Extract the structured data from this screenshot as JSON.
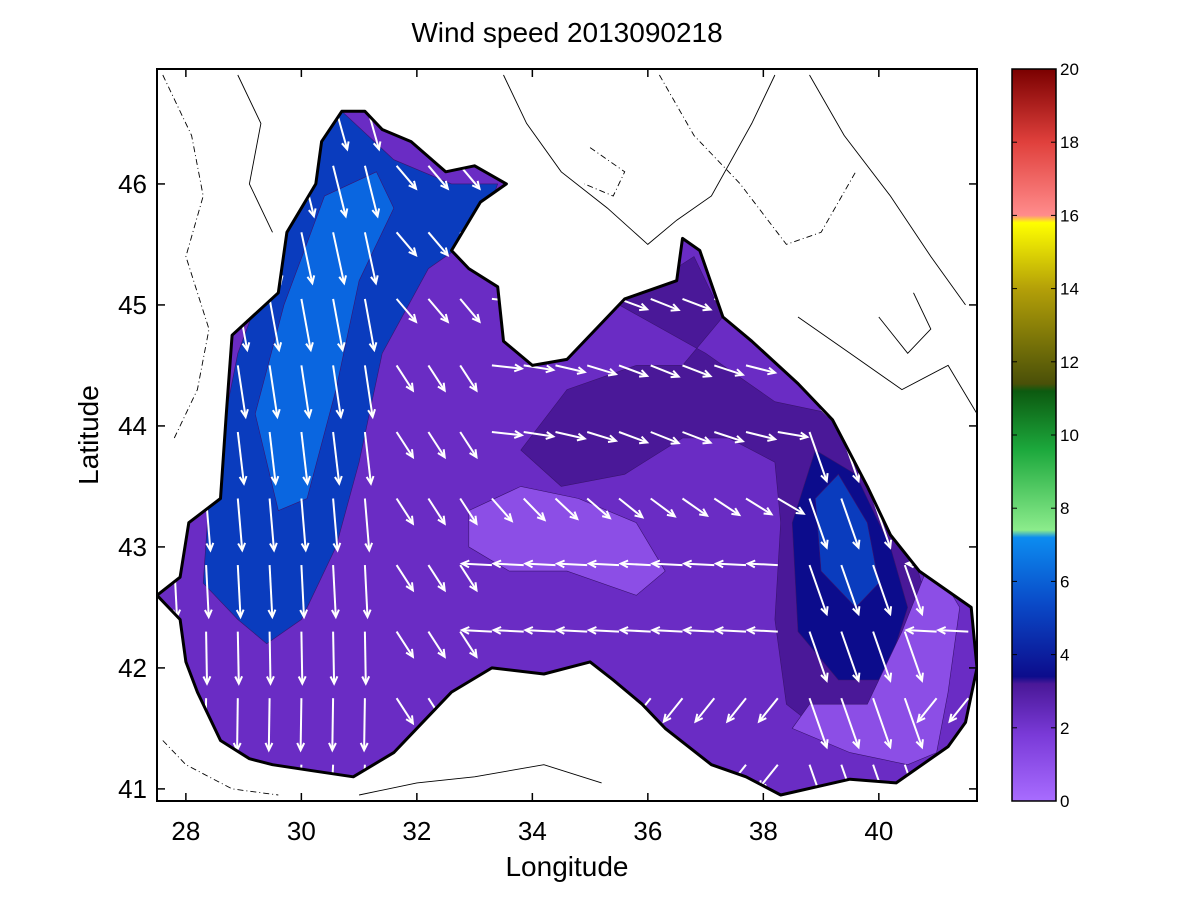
{
  "chart_data": {
    "type": "contour-quiver-map",
    "title": "Wind speed 2013090218",
    "xlabel": "Longitude",
    "ylabel": "Latitude",
    "xlim": [
      27.5,
      41.7
    ],
    "ylim": [
      40.9,
      46.95
    ],
    "xticks": [
      28,
      30,
      32,
      34,
      36,
      38,
      40
    ],
    "yticks": [
      41,
      42,
      43,
      44,
      45,
      46
    ],
    "grid": false,
    "colorbar": {
      "range": [
        0,
        20
      ],
      "ticks": [
        0,
        2,
        4,
        6,
        8,
        10,
        12,
        14,
        16,
        18,
        20
      ],
      "units_label": ""
    },
    "colors": {
      "land_bg": "#ffffff",
      "speed_0_2": "#8c4ee6",
      "speed_2_3": "#6a2cc4",
      "speed_3_4": "#4a1898",
      "speed_4_5": "#0c0c8c",
      "speed_5_6": "#0a3cbe",
      "speed_6_7": "#0a66e0",
      "arrow": "#ffffff",
      "coast": "#000000"
    },
    "speed_regions": [
      {
        "speed": 5.5,
        "lonlat": [
          [
            28.4,
            43.4
          ],
          [
            28.9,
            44.6
          ],
          [
            29.6,
            45.5
          ],
          [
            30.0,
            46.4
          ],
          [
            30.7,
            46.6
          ],
          [
            31.6,
            46.2
          ],
          [
            32.6,
            46.0
          ],
          [
            33.4,
            46.0
          ],
          [
            33.1,
            45.6
          ],
          [
            32.2,
            45.3
          ],
          [
            31.4,
            44.6
          ],
          [
            31.0,
            43.7
          ],
          [
            30.6,
            43.0
          ],
          [
            30.0,
            42.4
          ],
          [
            29.4,
            42.2
          ],
          [
            28.9,
            42.4
          ],
          [
            28.3,
            42.7
          ]
        ]
      },
      {
        "speed": 6.5,
        "lonlat": [
          [
            29.2,
            44.1
          ],
          [
            29.7,
            45.0
          ],
          [
            30.4,
            45.9
          ],
          [
            31.3,
            46.1
          ],
          [
            31.6,
            45.8
          ],
          [
            31.0,
            45.2
          ],
          [
            30.6,
            44.3
          ],
          [
            30.1,
            43.4
          ],
          [
            29.6,
            43.3
          ]
        ]
      },
      {
        "speed": 3.5,
        "lonlat": [
          [
            35.5,
            45.0
          ],
          [
            36.8,
            45.4
          ],
          [
            37.3,
            44.9
          ],
          [
            36.6,
            44.5
          ],
          [
            35.8,
            44.5
          ],
          [
            34.6,
            44.3
          ],
          [
            33.8,
            43.8
          ],
          [
            34.5,
            43.5
          ],
          [
            35.6,
            43.6
          ],
          [
            36.6,
            43.9
          ],
          [
            37.4,
            43.9
          ],
          [
            38.2,
            43.7
          ],
          [
            38.3,
            43.2
          ],
          [
            38.2,
            42.4
          ],
          [
            38.4,
            41.7
          ],
          [
            39.2,
            41.4
          ],
          [
            40.0,
            41.5
          ],
          [
            40.5,
            41.9
          ],
          [
            40.8,
            42.6
          ],
          [
            40.2,
            43.6
          ],
          [
            39.2,
            44.1
          ],
          [
            38.2,
            44.2
          ],
          [
            37.0,
            44.6
          ]
        ]
      },
      {
        "speed": 4.5,
        "lonlat": [
          [
            38.5,
            43.2
          ],
          [
            38.9,
            43.8
          ],
          [
            39.6,
            43.6
          ],
          [
            40.2,
            43.0
          ],
          [
            40.5,
            42.5
          ],
          [
            40.1,
            41.9
          ],
          [
            39.3,
            41.9
          ],
          [
            38.6,
            42.3
          ]
        ]
      },
      {
        "speed": 5.5,
        "lonlat": [
          [
            38.9,
            43.4
          ],
          [
            39.3,
            43.6
          ],
          [
            39.8,
            43.2
          ],
          [
            40.0,
            42.7
          ],
          [
            39.6,
            42.5
          ],
          [
            39.0,
            42.8
          ]
        ]
      },
      {
        "speed": 1.2,
        "lonlat": [
          [
            32.9,
            43.3
          ],
          [
            33.8,
            43.5
          ],
          [
            34.8,
            43.4
          ],
          [
            35.8,
            43.2
          ],
          [
            36.3,
            42.8
          ],
          [
            35.8,
            42.6
          ],
          [
            34.6,
            42.8
          ],
          [
            33.6,
            42.8
          ],
          [
            32.9,
            43.0
          ]
        ]
      },
      {
        "speed": 1.2,
        "lonlat": [
          [
            38.5,
            41.5
          ],
          [
            39.5,
            41.3
          ],
          [
            40.5,
            41.2
          ],
          [
            41.0,
            41.3
          ],
          [
            41.2,
            41.8
          ],
          [
            41.4,
            42.5
          ],
          [
            40.9,
            42.9
          ],
          [
            40.4,
            42.3
          ],
          [
            39.8,
            41.7
          ],
          [
            38.8,
            41.7
          ]
        ]
      }
    ],
    "wind_vectors_stride_deg": 0.55
  }
}
